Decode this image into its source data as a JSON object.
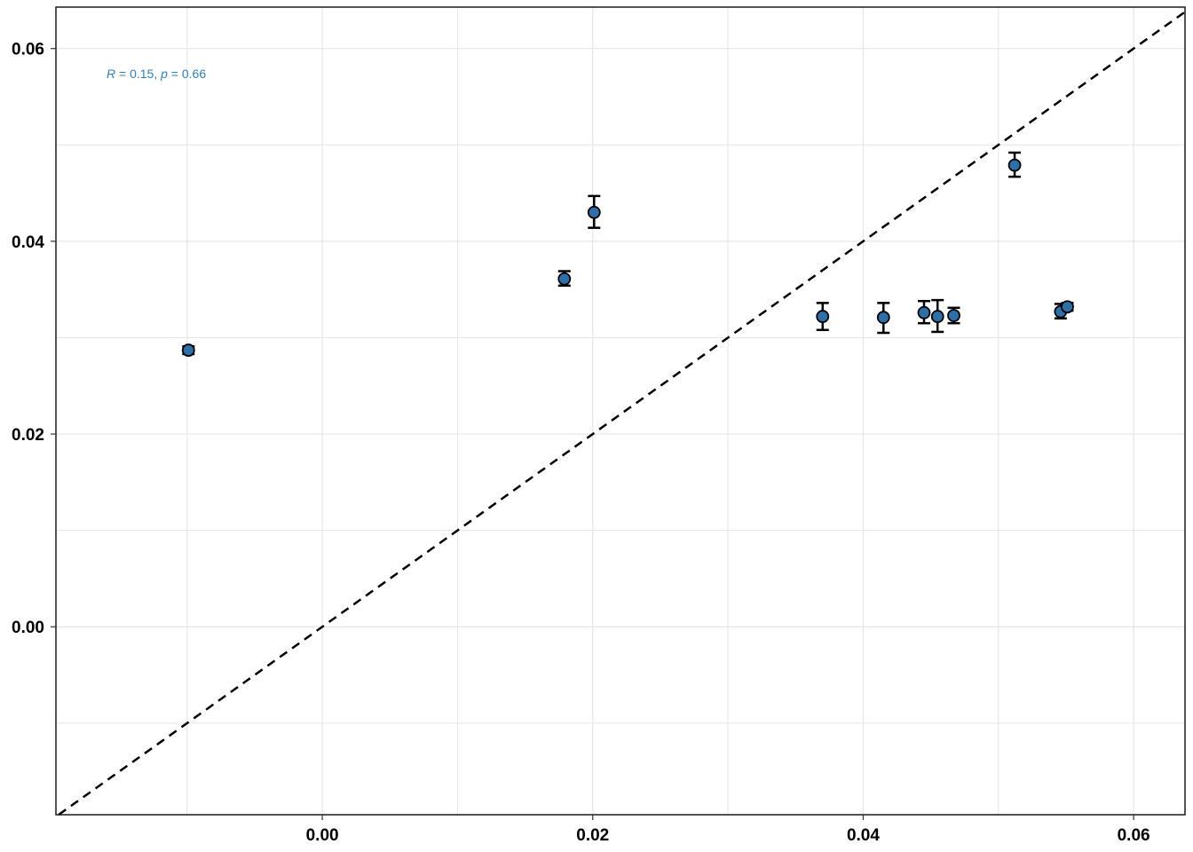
{
  "chart_data": {
    "type": "scatter",
    "title": "",
    "xlabel": "",
    "ylabel": "",
    "xlim": [
      -0.0197,
      0.0638
    ],
    "ylim": [
      -0.0195,
      0.0643
    ],
    "grid": true,
    "x_ticks": [
      "0.00",
      "0.02",
      "0.04",
      "0.06"
    ],
    "x_tick_values": [
      0.0,
      0.02,
      0.04,
      0.06
    ],
    "y_ticks": [
      "0.00",
      "0.02",
      "0.04",
      "0.06"
    ],
    "y_tick_values": [
      0.0,
      0.02,
      0.04,
      0.06
    ],
    "x_minor_gridlines": [
      -0.01,
      0.01,
      0.03,
      0.05
    ],
    "y_minor_gridlines": [
      -0.01,
      0.01,
      0.03,
      0.05
    ],
    "reference_line": {
      "slope": 1,
      "intercept": 0,
      "style": "dashed",
      "color": "#000000"
    },
    "annotation": {
      "r_label": "R",
      "r_value": " = 0.15, ",
      "p_label": "p",
      "p_value": " = 0.66",
      "color": "#2e7fb8"
    },
    "point_color": "#2e6fa8",
    "points": [
      {
        "x": -0.0099,
        "y": 0.0287,
        "ymin": 0.0283,
        "ymax": 0.0291
      },
      {
        "x": 0.0179,
        "y": 0.0361,
        "ymin": 0.0354,
        "ymax": 0.0369
      },
      {
        "x": 0.0201,
        "y": 0.043,
        "ymin": 0.0414,
        "ymax": 0.0447
      },
      {
        "x": 0.037,
        "y": 0.0322,
        "ymin": 0.0308,
        "ymax": 0.0336
      },
      {
        "x": 0.0415,
        "y": 0.0321,
        "ymin": 0.0305,
        "ymax": 0.0336
      },
      {
        "x": 0.0445,
        "y": 0.0326,
        "ymin": 0.0315,
        "ymax": 0.0338
      },
      {
        "x": 0.0455,
        "y": 0.0322,
        "ymin": 0.0306,
        "ymax": 0.0339
      },
      {
        "x": 0.0467,
        "y": 0.0323,
        "ymin": 0.0315,
        "ymax": 0.0331
      },
      {
        "x": 0.0512,
        "y": 0.0479,
        "ymin": 0.0467,
        "ymax": 0.0492
      },
      {
        "x": 0.0546,
        "y": 0.0327,
        "ymin": 0.032,
        "ymax": 0.0335
      },
      {
        "x": 0.0551,
        "y": 0.0332,
        "ymin": 0.0328,
        "ymax": 0.0336
      }
    ]
  }
}
